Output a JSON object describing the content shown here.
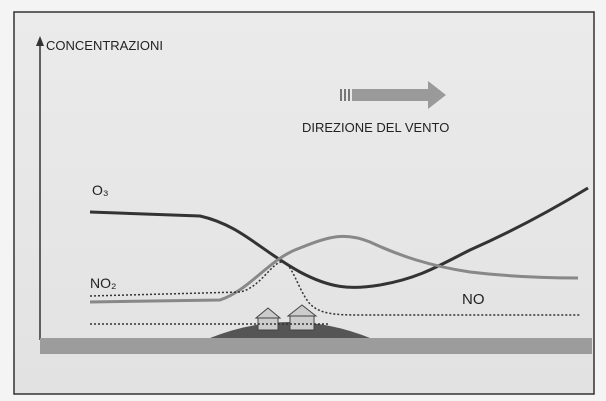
{
  "axis_label": "CONCENTRAZIONI",
  "wind_label": "DIREZIONE DEL VENTO",
  "curves": [
    {
      "label": "O₃"
    },
    {
      "label": "NO₂"
    },
    {
      "label": "NO"
    }
  ]
}
